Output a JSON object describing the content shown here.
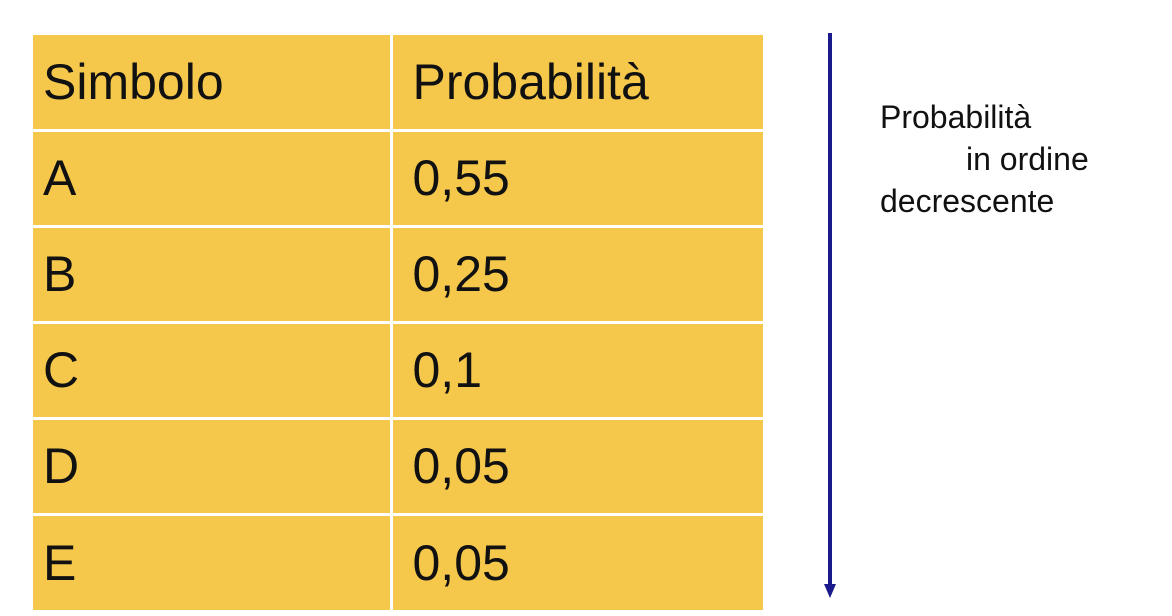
{
  "table": {
    "headers": {
      "symbol": "Simbolo",
      "probability": "Probabilità"
    },
    "rows": [
      {
        "symbol": "A",
        "probability": "0,55"
      },
      {
        "symbol": "B",
        "probability": "0,25"
      },
      {
        "symbol": "C",
        "probability": "0,1"
      },
      {
        "symbol": "D",
        "probability": "0,05"
      },
      {
        "symbol": "E",
        "probability": "0,05"
      }
    ]
  },
  "note": {
    "line1": "Probabilità",
    "line2": "in ordine",
    "line3": "decrescente"
  },
  "colors": {
    "table_fill": "#f5c84c",
    "arrow": "#1a1a8c",
    "text": "#111111"
  },
  "icons": {
    "arrow": "down-arrow-icon"
  }
}
